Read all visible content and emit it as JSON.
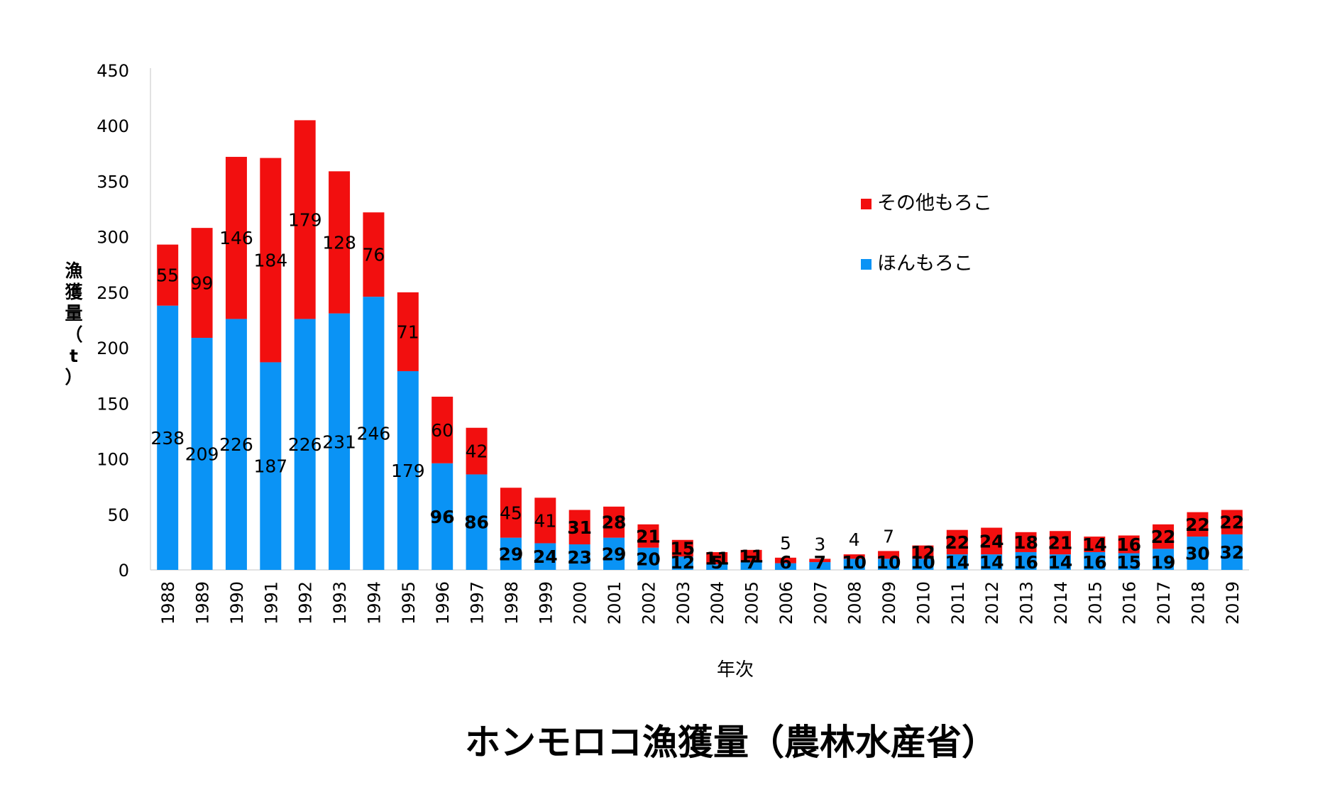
{
  "chart_data": {
    "type": "bar",
    "stacked": true,
    "title": "ホンモロコ漁獲量（農林水産省）",
    "xlabel": "年次",
    "ylabel": "漁獲量（t）",
    "ylim": [
      0,
      450
    ],
    "yticks": [
      0,
      50,
      100,
      150,
      200,
      250,
      300,
      350,
      400,
      450
    ],
    "legend_position": "right",
    "categories": [
      "1988",
      "1989",
      "1990",
      "1991",
      "1992",
      "1993",
      "1994",
      "1995",
      "1996",
      "1997",
      "1998",
      "1999",
      "2000",
      "2001",
      "2002",
      "2003",
      "2004",
      "2005",
      "2006",
      "2007",
      "2008",
      "2009",
      "2010",
      "2011",
      "2012",
      "2013",
      "2014",
      "2015",
      "2016",
      "2017",
      "2018",
      "2019"
    ],
    "series": [
      {
        "name": "ほんもろこ",
        "color": "#0A93F5",
        "values": [
          238,
          209,
          226,
          187,
          226,
          231,
          246,
          179,
          96,
          86,
          29,
          24,
          23,
          29,
          20,
          12,
          5,
          7,
          6,
          7,
          10,
          10,
          10,
          14,
          14,
          16,
          14,
          16,
          15,
          19,
          30,
          32
        ]
      },
      {
        "name": "その他もろこ",
        "color": "#F20F0F",
        "values": [
          55,
          99,
          146,
          184,
          179,
          128,
          76,
          71,
          60,
          42,
          45,
          41,
          31,
          28,
          21,
          15,
          11,
          11,
          5,
          3,
          4,
          7,
          12,
          22,
          24,
          18,
          21,
          14,
          16,
          22,
          22,
          22
        ]
      }
    ]
  }
}
